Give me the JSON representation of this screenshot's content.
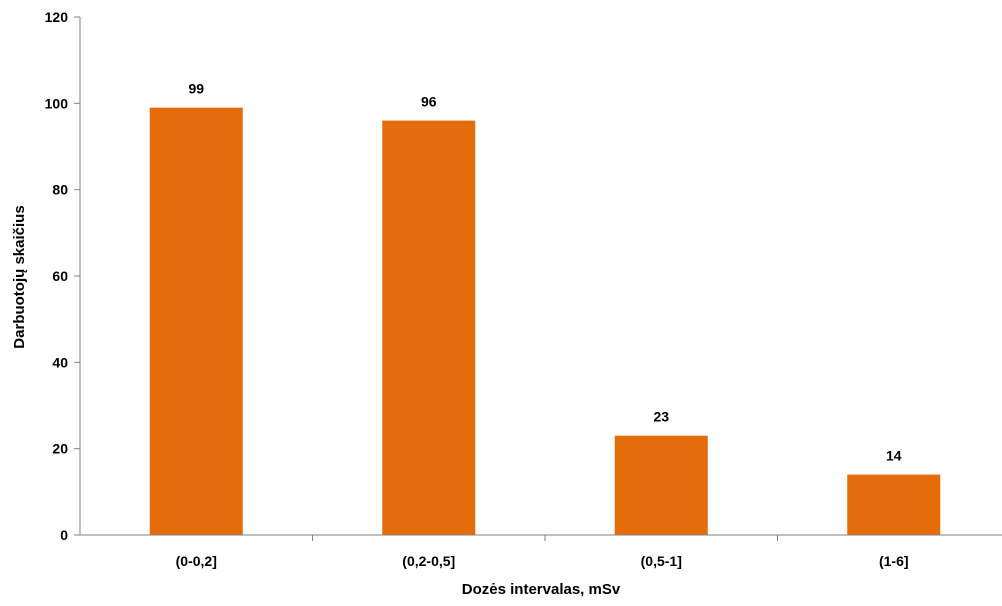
{
  "chart_data": {
    "type": "bar",
    "categories": [
      "(0-0,2]",
      "(0,2-0,5]",
      "(0,5-1]",
      "(1-6]"
    ],
    "values": [
      99,
      96,
      23,
      14
    ],
    "title": "",
    "xlabel": "Dozės intervalas, mSv",
    "ylabel": "Darbuotojų skaičius",
    "ylim": [
      0,
      120
    ],
    "yticks": [
      0,
      20,
      40,
      60,
      80,
      100,
      120
    ],
    "grid": false,
    "legend": "none",
    "bar_color": "#E46C0A",
    "show_data_labels": true
  }
}
